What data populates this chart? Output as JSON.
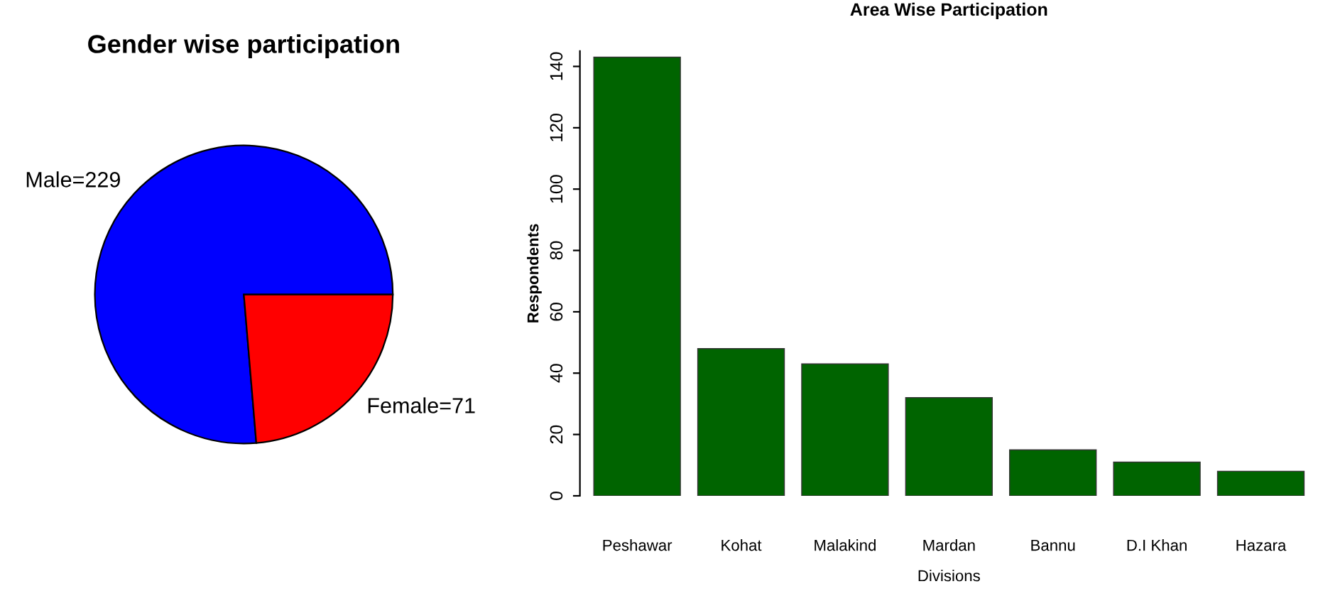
{
  "chart_data": [
    {
      "type": "pie",
      "title": "Gender wise participation",
      "categories": [
        "Male=229",
        "Female=71"
      ],
      "values": [
        229,
        71
      ],
      "colors": [
        "#0000ff",
        "#ff0000"
      ]
    },
    {
      "type": "bar",
      "title": "Area Wise Participation",
      "xlabel": "Divisions",
      "ylabel": "Respondents",
      "categories": [
        "Peshawar",
        "Kohat",
        "Malakind",
        "Mardan",
        "Bannu",
        "D.I Khan",
        "Hazara"
      ],
      "values": [
        143,
        48,
        43,
        32,
        15,
        11,
        8
      ],
      "color": "#006400",
      "ylim": [
        0,
        145
      ],
      "yticks": [
        0,
        20,
        40,
        60,
        80,
        100,
        120,
        140
      ],
      "grid": false,
      "legend": false
    }
  ]
}
